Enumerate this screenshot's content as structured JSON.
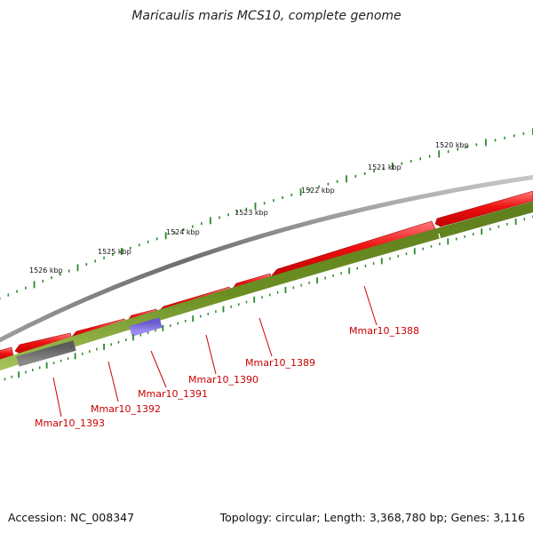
{
  "title": "Maricaulis maris MCS10, complete genome",
  "footer": {
    "accession": "Accession: NC_008347",
    "summary": "Topology: circular; Length: 3,368,780 bp; Genes: 3,116"
  },
  "colors": {
    "backbone": "#8a8a8a",
    "cds_forward": "#ee1111",
    "gene_track": "#6b8e23",
    "gene_track_light": "#9ab84a",
    "highlight_blue": "#7b68dd",
    "highlight_gray": "#707070",
    "tick": "#2a8a2a",
    "label_red": "#cc0000"
  },
  "scale_labels": [
    {
      "kbp": 1520,
      "text": "1520 kbp"
    },
    {
      "kbp": 1521,
      "text": "1521 kbp"
    },
    {
      "kbp": 1522,
      "text": "1522 kbp"
    },
    {
      "kbp": 1523,
      "text": "1523 kbp"
    },
    {
      "kbp": 1524,
      "text": "1524 kbp"
    },
    {
      "kbp": 1525,
      "text": "1525 kbp"
    },
    {
      "kbp": 1526,
      "text": "1526 kbp"
    }
  ],
  "gene_labels": [
    {
      "id": "Mmar10_1388",
      "text": "Mmar10_1388"
    },
    {
      "id": "Mmar10_1389",
      "text": "Mmar10_1389"
    },
    {
      "id": "Mmar10_1390",
      "text": "Mmar10_1390"
    },
    {
      "id": "Mmar10_1391",
      "text": "Mmar10_1391"
    },
    {
      "id": "Mmar10_1392",
      "text": "Mmar10_1392"
    },
    {
      "id": "Mmar10_1393",
      "text": "Mmar10_1393"
    }
  ]
}
